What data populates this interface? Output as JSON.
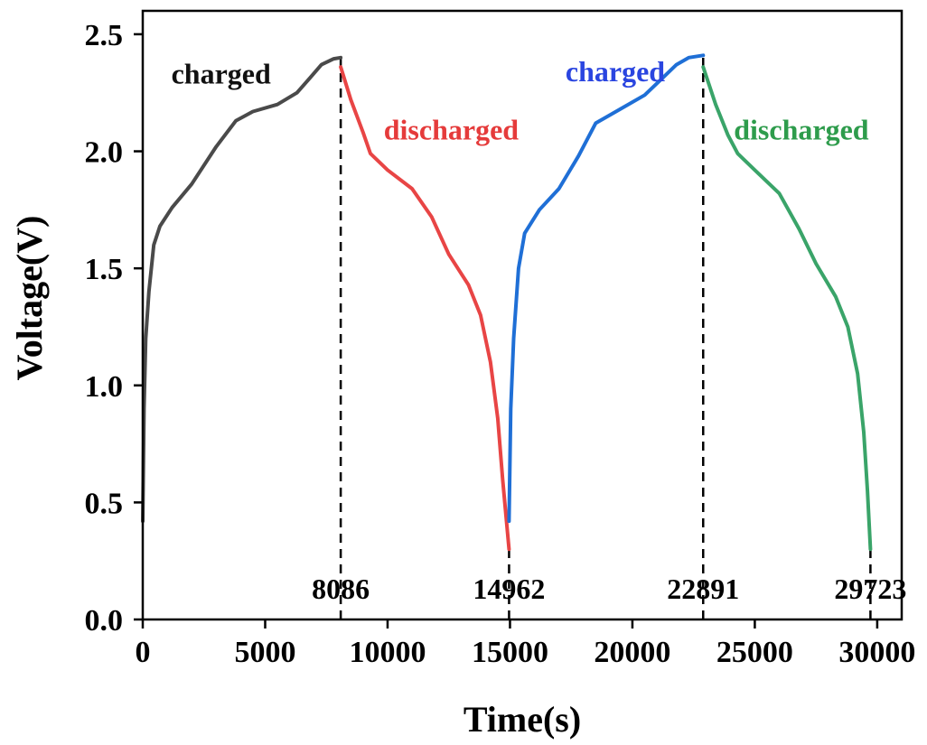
{
  "chart_data": {
    "type": "line",
    "xlabel": "Time(s)",
    "ylabel": "Voltage(V)",
    "xlim": [
      0,
      31000
    ],
    "ylim": [
      0.0,
      2.6
    ],
    "x_ticks": [
      0,
      5000,
      10000,
      15000,
      20000,
      25000,
      30000
    ],
    "x_tick_labels": [
      "0",
      "5000",
      "10000",
      "15000",
      "20000",
      "25000",
      "30000"
    ],
    "y_ticks": [
      0.0,
      0.5,
      1.0,
      1.5,
      2.0,
      2.5
    ],
    "y_tick_labels": [
      "0.0",
      "0.5",
      "1.0",
      "1.5",
      "2.0",
      "2.5"
    ],
    "grid": false,
    "series": [
      {
        "name": "",
        "color": "#4a4a4a",
        "points": [
          [
            0,
            0.42
          ],
          [
            50,
            0.9
          ],
          [
            120,
            1.2
          ],
          [
            250,
            1.4
          ],
          [
            450,
            1.6
          ],
          [
            700,
            1.68
          ],
          [
            1200,
            1.76
          ],
          [
            2000,
            1.86
          ],
          [
            3000,
            2.02
          ],
          [
            3800,
            2.13
          ],
          [
            4500,
            2.17
          ],
          [
            5500,
            2.2
          ],
          [
            6300,
            2.25
          ],
          [
            6800,
            2.31
          ],
          [
            7300,
            2.37
          ],
          [
            7800,
            2.395
          ],
          [
            8086,
            2.4
          ]
        ]
      },
      {
        "name": "",
        "color": "#e84545",
        "points": [
          [
            8086,
            2.36
          ],
          [
            8500,
            2.22
          ],
          [
            9000,
            2.08
          ],
          [
            9300,
            1.99
          ],
          [
            10000,
            1.92
          ],
          [
            11000,
            1.84
          ],
          [
            11800,
            1.72
          ],
          [
            12500,
            1.56
          ],
          [
            13300,
            1.43
          ],
          [
            13800,
            1.3
          ],
          [
            14200,
            1.1
          ],
          [
            14500,
            0.86
          ],
          [
            14700,
            0.6
          ],
          [
            14962,
            0.3
          ]
        ]
      },
      {
        "name": "",
        "color": "#1f6fd6",
        "points": [
          [
            14962,
            0.42
          ],
          [
            15030,
            0.9
          ],
          [
            15150,
            1.2
          ],
          [
            15350,
            1.5
          ],
          [
            15600,
            1.65
          ],
          [
            16200,
            1.75
          ],
          [
            17000,
            1.84
          ],
          [
            17800,
            1.98
          ],
          [
            18500,
            2.12
          ],
          [
            19500,
            2.18
          ],
          [
            20500,
            2.24
          ],
          [
            21200,
            2.31
          ],
          [
            21800,
            2.37
          ],
          [
            22300,
            2.4
          ],
          [
            22891,
            2.41
          ]
        ]
      },
      {
        "name": "",
        "color": "#3aa469",
        "points": [
          [
            22891,
            2.36
          ],
          [
            23400,
            2.2
          ],
          [
            23900,
            2.07
          ],
          [
            24300,
            1.99
          ],
          [
            25000,
            1.92
          ],
          [
            26000,
            1.82
          ],
          [
            26800,
            1.67
          ],
          [
            27500,
            1.52
          ],
          [
            28300,
            1.38
          ],
          [
            28800,
            1.25
          ],
          [
            29200,
            1.05
          ],
          [
            29450,
            0.8
          ],
          [
            29600,
            0.55
          ],
          [
            29723,
            0.3
          ]
        ]
      }
    ],
    "vertical_markers": [
      {
        "x": 8086,
        "label": "8086",
        "y_top": 2.4
      },
      {
        "x": 14962,
        "label": "14962",
        "y_top": 0.3
      },
      {
        "x": 22891,
        "label": "22891",
        "y_top": 2.41
      },
      {
        "x": 29723,
        "label": "29723",
        "y_top": 0.3
      }
    ],
    "annotations": [
      {
        "text": "charged",
        "x": 3200,
        "y": 2.29,
        "color": "#111111"
      },
      {
        "text": "discharged",
        "x": 12600,
        "y": 2.05,
        "color": "#e53b3b"
      },
      {
        "text": "charged",
        "x": 19300,
        "y": 2.3,
        "color": "#2a45e0"
      },
      {
        "text": "discharged",
        "x": 26900,
        "y": 2.05,
        "color": "#2e9c4c"
      }
    ]
  }
}
